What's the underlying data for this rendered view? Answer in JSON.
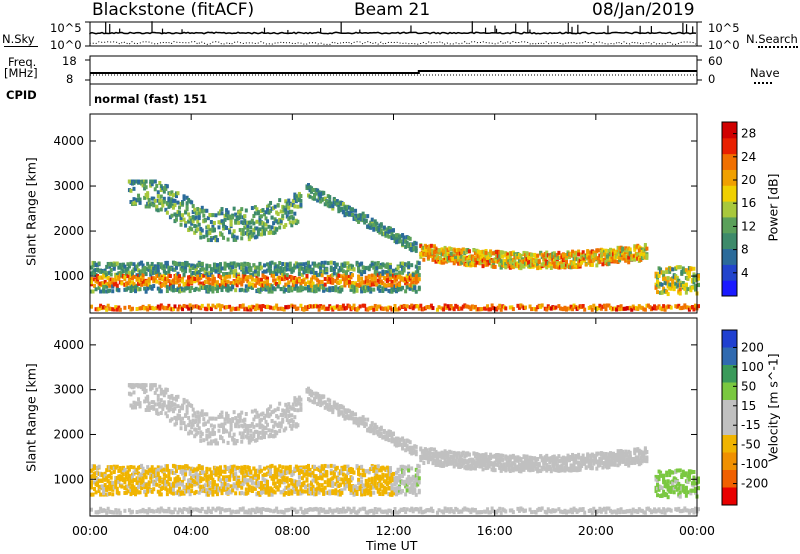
{
  "header": {
    "station": "Blackstone (fitACF)",
    "beam": "Beam 21",
    "date": "08/Jan/2019"
  },
  "top_panels": {
    "nsky_label": "N.Sky",
    "nsearch_label": "N.Search",
    "nsky_ticks": [
      "10^5",
      "10^0"
    ],
    "nsearch_ticks": [
      "10^5",
      "10^0"
    ],
    "freq_label_1": "Freq.",
    "freq_label_2": "[MHz]",
    "freq_ticks": [
      "18",
      "8"
    ],
    "nave_label": "Nave",
    "nave_ticks": [
      "60",
      "0"
    ],
    "cpid_label": "CPID",
    "cpid_value": "normal (fast) 151"
  },
  "colors": {
    "power_scale": [
      "#1a1aff",
      "#2244cc",
      "#2b6b9a",
      "#3d8a6a",
      "#5aa05a",
      "#a8c83c",
      "#f0d000",
      "#f0a000",
      "#f07000",
      "#e82000",
      "#d00000"
    ],
    "velocity_scale": [
      "#2040d0",
      "#306ab0",
      "#3a9a5a",
      "#7ac840",
      "#c0c0c0",
      "#c0c0c0",
      "#f0b400",
      "#f09000",
      "#f06000",
      "#e80000"
    ]
  },
  "chart_data": [
    {
      "type": "heatmap",
      "ylabel": "Slant Range [km]",
      "xlabel": "Time UT",
      "x_ticks": [
        "00:00",
        "04:00",
        "08:00",
        "12:00",
        "16:00",
        "20:00",
        "00:00"
      ],
      "y_ticks": [
        "1000",
        "2000",
        "3000",
        "4000"
      ],
      "xlim": [
        0,
        24
      ],
      "ylim": [
        180,
        4600
      ],
      "colorbar": {
        "label": "Power [dB]",
        "ticks": [
          "4",
          "8",
          "12",
          "16",
          "20",
          "24",
          "28"
        ],
        "range": [
          0,
          30
        ]
      }
    },
    {
      "type": "heatmap",
      "ylabel": "Slant Range [km]",
      "xlabel": "Time UT",
      "x_ticks": [
        "00:00",
        "04:00",
        "08:00",
        "12:00",
        "16:00",
        "20:00",
        "00:00"
      ],
      "y_ticks": [
        "1000",
        "2000",
        "3000",
        "4000"
      ],
      "xlim": [
        0,
        24
      ],
      "ylim": [
        180,
        4600
      ],
      "colorbar": {
        "label": "Velocity [m s^-1]",
        "ticks": [
          "200",
          "100",
          "50",
          "15",
          "-15",
          "-50",
          "-100",
          "-200"
        ],
        "range": [
          -250,
          250
        ]
      }
    }
  ],
  "axis": {
    "time_label": "Time UT"
  }
}
